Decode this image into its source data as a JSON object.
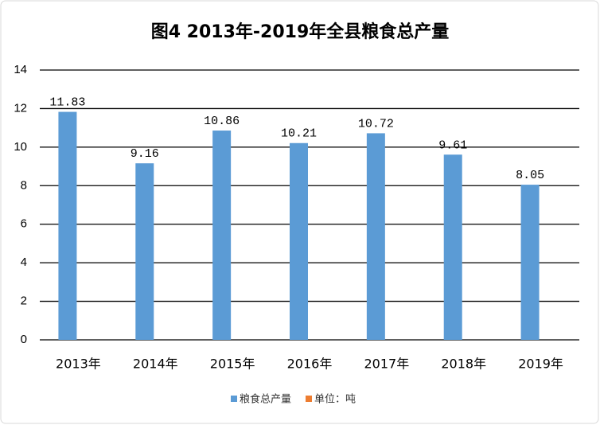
{
  "chart_data": {
    "type": "bar",
    "title": "图4  2013年-2019年全县粮食总产量",
    "categories": [
      "2013年",
      "2014年",
      "2015年",
      "2016年",
      "2017年",
      "2018年",
      "2019年"
    ],
    "series": [
      {
        "name": "粮食总产量",
        "color": "#5b9bd5",
        "values": [
          11.83,
          9.16,
          10.86,
          10.21,
          10.72,
          9.61,
          8.05
        ]
      },
      {
        "name": "单位：吨",
        "color": "#ed7d31",
        "values": [
          null,
          null,
          null,
          null,
          null,
          null,
          null
        ]
      }
    ],
    "ylim": [
      0,
      14
    ],
    "yticks": [
      0,
      2,
      4,
      6,
      8,
      10,
      12,
      14
    ],
    "grid": true,
    "legend": "bottom"
  }
}
